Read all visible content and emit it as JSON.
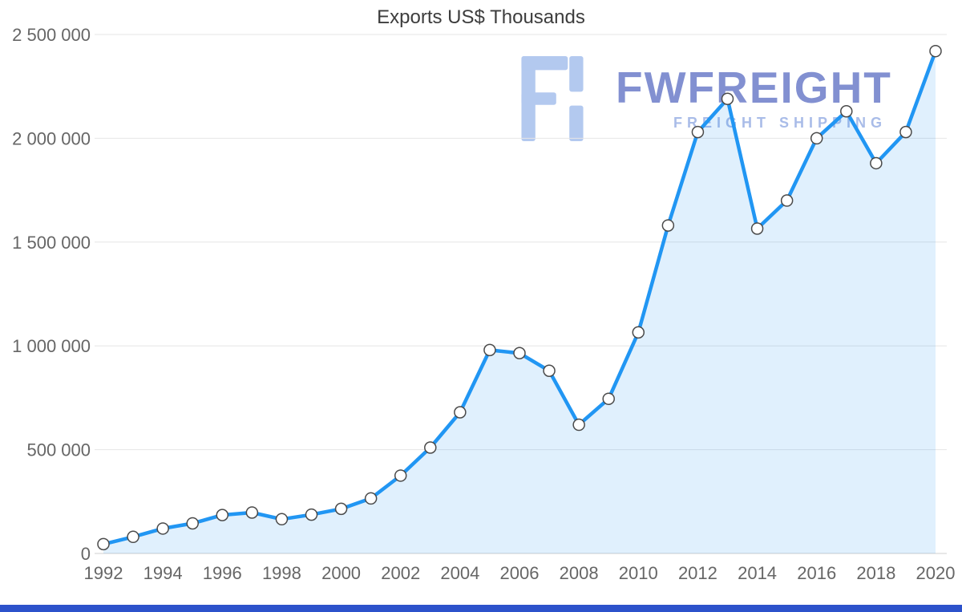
{
  "watermark": {
    "brand": "FWFREIGHT",
    "tagline": "FREIGHT SHIPPING",
    "logo_color": "#b3c9ef",
    "brand_color": "#8290d1",
    "tagline_color": "#a9bce8"
  },
  "chart_data": {
    "type": "area",
    "title": "Exports US$ Thousands",
    "xlabel": "",
    "ylabel": "",
    "x": [
      1992,
      1993,
      1994,
      1995,
      1996,
      1997,
      1998,
      1999,
      2000,
      2001,
      2002,
      2003,
      2004,
      2005,
      2006,
      2007,
      2008,
      2009,
      2010,
      2011,
      2012,
      2013,
      2014,
      2015,
      2016,
      2017,
      2018,
      2019,
      2020
    ],
    "values": [
      45000,
      80000,
      120000,
      145000,
      185000,
      197000,
      165000,
      187000,
      215000,
      265000,
      375000,
      510000,
      680000,
      980000,
      965000,
      880000,
      620000,
      745000,
      1065000,
      1580000,
      2030000,
      2190000,
      1565000,
      1700000,
      2000000,
      2130000,
      1880000,
      2030000,
      2420000
    ],
    "ylim": [
      0,
      2500000
    ],
    "ytick_interval": 500000,
    "ytick_labels": [
      "0",
      "500 000",
      "1 000 000",
      "1 500 000",
      "2 000 000",
      "2 500 000"
    ],
    "xtick_labels": [
      "1992",
      "1994",
      "1996",
      "1998",
      "2000",
      "2002",
      "2004",
      "2006",
      "2008",
      "2010",
      "2012",
      "2014",
      "2016",
      "2018",
      "2020"
    ],
    "grid": "horizontal",
    "legend": "none",
    "line_color": "#2196f3",
    "area_color": "#ddeefc",
    "marker_fill": "#ffffff",
    "marker_stroke": "#4a4a4a",
    "grid_color": "#e6e6e6",
    "axis_label_color": "#666666"
  }
}
